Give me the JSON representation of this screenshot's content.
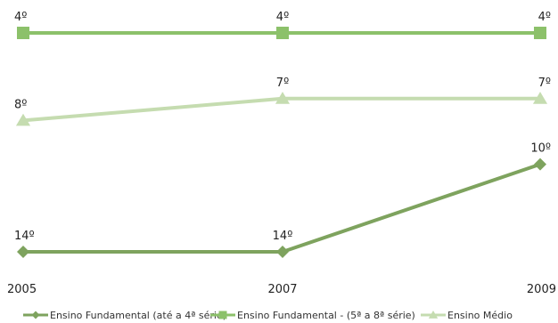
{
  "chart_data": {
    "type": "line",
    "x": [
      "2005",
      "2007",
      "2009"
    ],
    "y_inverted": true,
    "ylim": [
      1,
      15
    ],
    "grid": false,
    "legend_position": "bottom",
    "series": [
      {
        "name": "Ensino Fundamental (até a 4ª série)",
        "values": [
          14,
          14,
          10
        ],
        "labels": [
          "14º",
          "14º",
          "10º"
        ],
        "color": "#7ea35e",
        "marker": "diamond"
      },
      {
        "name": "Ensino Fundamental - (5ª a 8ª série)",
        "values": [
          4,
          4,
          4
        ],
        "labels": [
          "4º",
          "4º",
          "4º"
        ],
        "color": "#8cc16a",
        "marker": "square"
      },
      {
        "name": "Ensino Médio",
        "values": [
          8,
          7,
          7
        ],
        "labels": [
          "8º",
          "7º",
          "7º"
        ],
        "color": "#c5dcb0",
        "marker": "triangle"
      }
    ]
  }
}
